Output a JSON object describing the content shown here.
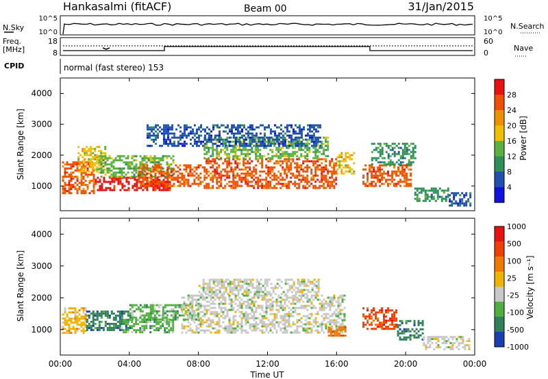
{
  "header": {
    "site": "Hankasalmi (fitACF)",
    "beam": "Beam 00",
    "date": "31/Jan/2015"
  },
  "param_panel": {
    "nsky_label": "N.Sky",
    "nsky_ticks": [
      "10^5",
      "10^0"
    ],
    "nsearch_label": "N.Search",
    "nsearch_ticks": [
      "10^5",
      "10^0"
    ],
    "freq_label": "Freq.",
    "freq_unit": "[MHz]",
    "freq_ticks": [
      "18",
      "8"
    ],
    "nave_label": "Nave",
    "nave_ticks": [
      "60",
      "0"
    ],
    "cpid_label": "CPID",
    "cpid_text": "normal (fast stereo) 153"
  },
  "x_axis": {
    "label": "Time UT",
    "ticks": [
      "00:00",
      "04:00",
      "08:00",
      "12:00",
      "16:00",
      "20:00",
      "00:00"
    ]
  },
  "colors": {
    "power": [
      "#1010e0",
      "#2050b0",
      "#2f8f5a",
      "#5ab040",
      "#f0c000",
      "#f09000",
      "#f05000",
      "#e81010"
    ],
    "velocity": [
      "#1a3fb0",
      "#2f7f5a",
      "#4fb040",
      "#c8c8c8",
      "#f0b400",
      "#f07800",
      "#f04000",
      "#e81010"
    ]
  },
  "chart_data": [
    {
      "type": "heatmap",
      "name": "power-panel",
      "ylabel": "Slant Range [km]",
      "xlabel": "",
      "ylim": [
        200,
        4500
      ],
      "yticks": [
        "1000",
        "2000",
        "3000",
        "4000"
      ],
      "colorbar_label": "Power [dB]",
      "colorbar_ticks": [
        "4",
        "8",
        "12",
        "16",
        "20",
        "24",
        "28"
      ],
      "bands": [
        {
          "x0": 0.1,
          "x1": 2.0,
          "r0": 800,
          "r1": 1800,
          "level": 6
        },
        {
          "x0": 1.0,
          "x1": 2.6,
          "r0": 1500,
          "r1": 2300,
          "level": 4
        },
        {
          "x0": 2.0,
          "x1": 6.5,
          "r0": 900,
          "r1": 1300,
          "level": 7
        },
        {
          "x0": 2.2,
          "x1": 6.5,
          "r0": 1300,
          "r1": 2000,
          "level": 3
        },
        {
          "x0": 4.5,
          "x1": 8.3,
          "r0": 1000,
          "r1": 1700,
          "level": 6
        },
        {
          "x0": 8.3,
          "x1": 16.0,
          "r0": 950,
          "r1": 1900,
          "level": 6
        },
        {
          "x0": 8.3,
          "x1": 15.5,
          "r0": 1900,
          "r1": 2600,
          "level": 3
        },
        {
          "x0": 5.0,
          "x1": 15.0,
          "r0": 2300,
          "r1": 3000,
          "level": 1
        },
        {
          "x0": 16.0,
          "x1": 17.0,
          "r0": 1400,
          "r1": 2100,
          "level": 4
        },
        {
          "x0": 17.5,
          "x1": 20.3,
          "r0": 1000,
          "r1": 1700,
          "level": 6
        },
        {
          "x0": 18.0,
          "x1": 20.5,
          "r0": 1700,
          "r1": 2400,
          "level": 2
        },
        {
          "x0": 20.5,
          "x1": 22.5,
          "r0": 550,
          "r1": 950,
          "level": 2
        },
        {
          "x0": 22.5,
          "x1": 23.7,
          "r0": 400,
          "r1": 800,
          "level": 1
        }
      ]
    },
    {
      "type": "heatmap",
      "name": "velocity-panel",
      "ylabel": "Slant Range [km]",
      "xlabel": "Time UT",
      "ylim": [
        200,
        4500
      ],
      "yticks": [
        "1000",
        "2000",
        "3000",
        "4000"
      ],
      "colorbar_label": "Velocity [m s⁻¹]",
      "colorbar_ticks": [
        "1000",
        "500",
        "100",
        "25",
        "-25",
        "-100",
        "-500",
        "-1000"
      ],
      "bands": [
        {
          "x0": 0.1,
          "x1": 1.5,
          "r0": 900,
          "r1": 1700,
          "level": 4
        },
        {
          "x0": 1.5,
          "x1": 4.0,
          "r0": 1000,
          "r1": 1600,
          "level": 1
        },
        {
          "x0": 3.5,
          "x1": 6.5,
          "r0": 900,
          "r1": 1400,
          "level": 2
        },
        {
          "x0": 4.0,
          "x1": 8.0,
          "r0": 1300,
          "r1": 1800,
          "level": 2
        },
        {
          "x0": 7.0,
          "x1": 16.5,
          "r0": 900,
          "r1": 2100,
          "level": 3
        },
        {
          "x0": 8.0,
          "x1": 15.0,
          "r0": 2100,
          "r1": 2600,
          "level": 3
        },
        {
          "x0": 15.5,
          "x1": 16.5,
          "r0": 800,
          "r1": 1100,
          "level": 5
        },
        {
          "x0": 17.5,
          "x1": 19.5,
          "r0": 1000,
          "r1": 1700,
          "level": 6
        },
        {
          "x0": 19.5,
          "x1": 21.0,
          "r0": 700,
          "r1": 1300,
          "level": 1
        },
        {
          "x0": 21.0,
          "x1": 23.7,
          "r0": 400,
          "r1": 800,
          "level": 3
        }
      ]
    }
  ]
}
